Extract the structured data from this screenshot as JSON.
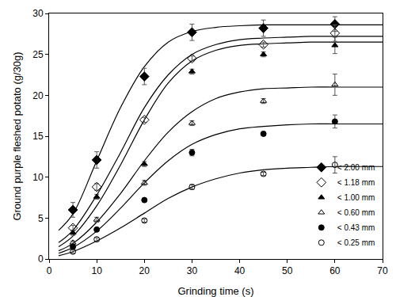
{
  "chart_data": {
    "type": "scatter",
    "x_label": "Grinding time (s)",
    "y_label": "Ground purple fleshed potato (g/30g)",
    "x": [
      5,
      10,
      20,
      30,
      45,
      60
    ],
    "curve_x": [
      2,
      5,
      10,
      15,
      20,
      25,
      30,
      35,
      40,
      45,
      50,
      55,
      60,
      65,
      70
    ],
    "xlim": [
      0,
      70
    ],
    "xticks": [
      0,
      10,
      20,
      30,
      40,
      50,
      60,
      70
    ],
    "ylim": [
      0,
      30
    ],
    "yticks": [
      0,
      5,
      10,
      15,
      20,
      25,
      30
    ],
    "grid": false,
    "legend": "bottom-right",
    "series": [
      {
        "name": "< 2.00 mm",
        "color": "#000000",
        "marker": "diamond",
        "values": [
          6.0,
          12.1,
          22.3,
          27.7,
          28.2,
          28.7
        ],
        "errors": [
          0.9,
          1.0,
          1.0,
          1.0,
          1.0,
          0.9
        ],
        "curve": [
          3.5,
          5.5,
          12.0,
          18.5,
          23.5,
          26.5,
          27.8,
          28.3,
          28.5,
          28.6,
          28.6,
          28.6,
          28.6,
          28.6,
          28.6
        ]
      },
      {
        "name": "< 1.18 mm",
        "color": "#000000",
        "marker": "diamond-open",
        "values": [
          3.8,
          8.8,
          17.0,
          24.5,
          26.2,
          27.6
        ],
        "errors": [
          0.3,
          0.4,
          0.3,
          0.3,
          0.3,
          1.0
        ],
        "curve": [
          2.0,
          3.5,
          7.8,
          13.0,
          18.5,
          22.5,
          25.0,
          26.2,
          26.8,
          27.0,
          27.1,
          27.2,
          27.2,
          27.2,
          27.2
        ]
      },
      {
        "name": "< 1.00 mm",
        "color": "#000000",
        "marker": "triangle-up",
        "values": [
          3.2,
          7.6,
          11.6,
          22.9,
          25.0,
          26.1
        ],
        "errors": [
          0.3,
          0.3,
          0.3,
          0.3,
          0.3,
          1.0
        ],
        "curve": [
          1.5,
          2.8,
          6.5,
          11.5,
          17.0,
          21.5,
          24.2,
          25.5,
          26.1,
          26.3,
          26.4,
          26.5,
          26.5,
          26.5,
          26.5
        ]
      },
      {
        "name": "< 0.60 mm",
        "color": "#000000",
        "marker": "triangle-up-open",
        "values": [
          2.0,
          4.8,
          9.3,
          16.6,
          19.3,
          21.3
        ],
        "errors": [
          0.2,
          0.3,
          0.3,
          0.3,
          0.3,
          1.3
        ],
        "curve": [
          1.0,
          1.9,
          4.5,
          8.0,
          12.0,
          15.5,
          18.0,
          19.6,
          20.4,
          20.8,
          20.9,
          21.0,
          21.0,
          21.0,
          21.0
        ]
      },
      {
        "name": "< 0.43 mm",
        "color": "#000000",
        "marker": "circle",
        "values": [
          1.5,
          3.6,
          7.2,
          13.0,
          15.3,
          16.8
        ],
        "errors": [
          0.2,
          0.2,
          0.2,
          0.4,
          0.2,
          0.8
        ],
        "curve": [
          0.7,
          1.4,
          3.4,
          6.2,
          9.3,
          12.0,
          14.0,
          15.2,
          15.9,
          16.2,
          16.4,
          16.5,
          16.5,
          16.5,
          16.5
        ]
      },
      {
        "name": "< 0.25 mm",
        "color": "#000000",
        "marker": "circle-open",
        "values": [
          0.9,
          2.4,
          4.7,
          8.8,
          10.4,
          11.5
        ],
        "errors": [
          0.2,
          0.2,
          0.2,
          0.3,
          0.2,
          1.0
        ],
        "curve": [
          0.4,
          0.9,
          2.2,
          3.8,
          5.6,
          7.4,
          8.8,
          9.8,
          10.5,
          10.9,
          11.1,
          11.2,
          11.3,
          11.3,
          11.3
        ]
      }
    ]
  }
}
